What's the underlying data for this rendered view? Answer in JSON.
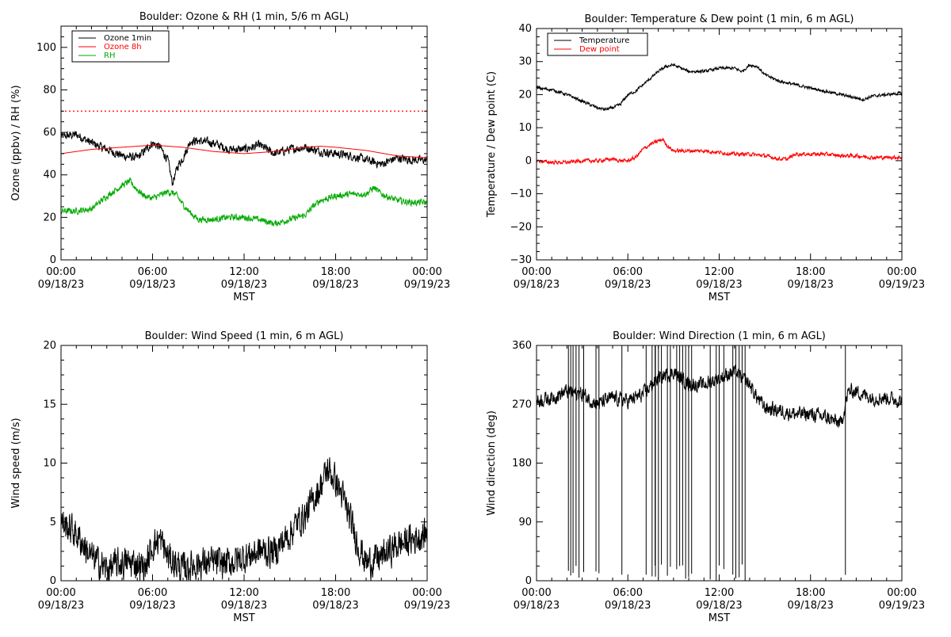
{
  "chart_data": [
    {
      "id": "ozone",
      "type": "line",
      "title": "Boulder: Ozone & RH (1 min, 5/6 m AGL)",
      "xlabel": "MST",
      "ylabel": "Ozone (ppbv) / RH (%)",
      "xlim": [
        0,
        24
      ],
      "ylim": [
        0,
        110
      ],
      "ytick_values": [
        0,
        20,
        40,
        60,
        80,
        100
      ],
      "ytick_labels": [
        "0",
        "20",
        "40",
        "60",
        "80",
        "100"
      ],
      "xtick_values": [
        0,
        6,
        12,
        18,
        24
      ],
      "xtick_labels": [
        [
          "00:00",
          "09/18/23"
        ],
        [
          "06:00",
          "09/18/23"
        ],
        [
          "12:00",
          "09/18/23"
        ],
        [
          "18:00",
          "09/18/23"
        ],
        [
          "00:00",
          "09/19/23"
        ]
      ],
      "show_xlabel": true,
      "legend": {
        "position": "top-left",
        "entries": [
          {
            "name": "Ozone 1min",
            "color": "#000000"
          },
          {
            "name": "Ozone 8h",
            "color": "#ff0000"
          },
          {
            "name": "RH",
            "color": "#00aa00"
          }
        ]
      },
      "reference_lines": [
        {
          "y": 70,
          "color": "#ff0000",
          "style": "dotted"
        }
      ],
      "series": [
        {
          "name": "Ozone 1min",
          "color": "#000000",
          "noise": 1.8,
          "x": [
            0,
            1,
            2,
            3,
            4,
            5,
            6,
            6.5,
            7,
            7.3,
            7.7,
            8,
            8.5,
            9,
            10,
            11,
            12,
            13,
            14,
            15,
            16,
            17,
            18,
            19,
            20,
            21,
            22,
            23,
            24
          ],
          "y": [
            58,
            59,
            55,
            52,
            49,
            48,
            55,
            53,
            47,
            36,
            45,
            48,
            56,
            56,
            55,
            52,
            52,
            54,
            50,
            52,
            53,
            51,
            50,
            49,
            47,
            45,
            48,
            47,
            47
          ]
        },
        {
          "name": "Ozone 8h",
          "color": "#ff0000",
          "noise": 0,
          "x": [
            0,
            2,
            4,
            6,
            8,
            10,
            12,
            14,
            16,
            17,
            18,
            20,
            22,
            24
          ],
          "y": [
            50,
            52,
            53,
            54,
            53,
            51,
            50,
            51,
            53,
            53.5,
            53,
            51.5,
            49,
            48
          ]
        },
        {
          "name": "RH",
          "color": "#00aa00",
          "noise": 1.3,
          "x": [
            0,
            1,
            2,
            3,
            4,
            4.5,
            5,
            5.5,
            6,
            7,
            7.5,
            8,
            8.5,
            9,
            10,
            11,
            12,
            13,
            14,
            15,
            16,
            16.5,
            17,
            18,
            19,
            20,
            20.5,
            21,
            22,
            23,
            24
          ],
          "y": [
            23,
            23,
            24,
            30,
            35,
            37,
            33,
            30,
            29,
            32,
            31,
            26,
            22,
            19,
            19,
            20,
            20,
            19,
            17,
            19,
            21,
            25,
            28,
            30,
            31,
            31,
            34,
            31,
            28,
            27,
            27
          ]
        }
      ]
    },
    {
      "id": "temp",
      "type": "line",
      "title": "Boulder: Temperature & Dew point (1 min, 6 m AGL)",
      "xlabel": "MST",
      "ylabel": "Temperature / Dew point (C)",
      "xlim": [
        0,
        24
      ],
      "ylim": [
        -30,
        40
      ],
      "ytick_values": [
        -30,
        -20,
        -10,
        0,
        10,
        20,
        30,
        40
      ],
      "ytick_labels": [
        "−30",
        "−20",
        "−10",
        "0",
        "10",
        "20",
        "30",
        "40"
      ],
      "xtick_values": [
        0,
        6,
        12,
        18,
        24
      ],
      "xtick_labels": [
        [
          "00:00",
          "09/18/23"
        ],
        [
          "06:00",
          "09/18/23"
        ],
        [
          "12:00",
          "09/18/23"
        ],
        [
          "18:00",
          "09/18/23"
        ],
        [
          "00:00",
          "09/19/23"
        ]
      ],
      "show_xlabel": true,
      "legend": {
        "position": "top-left",
        "entries": [
          {
            "name": "Temperature",
            "color": "#000000"
          },
          {
            "name": "Dew point",
            "color": "#ff0000"
          }
        ]
      },
      "reference_lines": [],
      "series": [
        {
          "name": "Temperature",
          "color": "#000000",
          "noise": 0.4,
          "x": [
            0,
            1,
            2,
            3,
            4,
            4.5,
            5,
            5.5,
            6,
            6.5,
            7,
            7.5,
            8,
            8.5,
            9,
            9.5,
            10,
            11,
            12,
            13,
            13.5,
            14,
            14.5,
            15,
            16,
            17,
            18,
            19,
            20,
            21,
            21.5,
            22,
            23,
            24
          ],
          "y": [
            22,
            21.5,
            20,
            18,
            16,
            15.5,
            16,
            17,
            20,
            21,
            23,
            25,
            27,
            28.5,
            29,
            28,
            27,
            27,
            28,
            28,
            27,
            29,
            28.5,
            26,
            24,
            23,
            22,
            21,
            20,
            19,
            18.5,
            19.5,
            20,
            20.5
          ]
        },
        {
          "name": "Dew point",
          "color": "#ff0000",
          "noise": 0.5,
          "x": [
            0,
            1,
            2,
            3,
            4,
            5,
            5.5,
            6,
            6.5,
            7,
            7.5,
            8,
            8.3,
            8.6,
            9,
            10,
            11,
            12,
            13,
            14,
            15,
            16,
            16.5,
            17,
            18,
            19,
            20,
            21,
            22,
            23,
            24
          ],
          "y": [
            0,
            -0.5,
            -0.5,
            0,
            0,
            0.5,
            0,
            0,
            1,
            3.5,
            5,
            6,
            6.5,
            4.5,
            3,
            3,
            3,
            2.5,
            2,
            2,
            1.5,
            0.5,
            0.5,
            2,
            2,
            2,
            1.5,
            1.5,
            1,
            1,
            1
          ]
        }
      ]
    },
    {
      "id": "wind",
      "type": "line",
      "title": "Boulder: Wind Speed (1 min, 6 m AGL)",
      "xlabel": "MST",
      "ylabel": "Wind speed (m/s)",
      "xlim": [
        0,
        24
      ],
      "ylim": [
        0,
        20
      ],
      "ytick_values": [
        0,
        5,
        10,
        15,
        20
      ],
      "ytick_labels": [
        "0",
        "5",
        "10",
        "15",
        "20"
      ],
      "xtick_values": [
        0,
        6,
        12,
        18,
        24
      ],
      "xtick_labels": [
        [
          "00:00",
          "09/18/23"
        ],
        [
          "06:00",
          "09/18/23"
        ],
        [
          "12:00",
          "09/18/23"
        ],
        [
          "18:00",
          "09/18/23"
        ],
        [
          "00:00",
          "09/19/23"
        ]
      ],
      "show_xlabel": true,
      "legend": null,
      "reference_lines": [],
      "series": [
        {
          "name": "Wind speed",
          "color": "#000000",
          "noise": 1.2,
          "x": [
            0,
            1,
            2,
            3,
            4,
            5,
            5.5,
            6,
            6.5,
            7,
            8,
            9,
            10,
            11,
            12,
            13,
            14,
            15,
            15.5,
            16,
            17,
            17.5,
            18,
            18.5,
            19,
            19.5,
            20,
            21,
            22,
            23,
            24
          ],
          "y": [
            5,
            4,
            2,
            1,
            1.5,
            1.5,
            1,
            3,
            3.5,
            2,
            1,
            1.5,
            1.5,
            1.5,
            2,
            2.5,
            2.5,
            4,
            5,
            5.5,
            8,
            9.5,
            8.5,
            7,
            5,
            3,
            1.5,
            2,
            3,
            3.5,
            4
          ]
        }
      ]
    },
    {
      "id": "wdir",
      "type": "line",
      "title": "Boulder: Wind Direction (1 min, 6 m AGL)",
      "xlabel": "MST",
      "ylabel": "Wind direction (deg)",
      "xlim": [
        0,
        24
      ],
      "ylim": [
        0,
        360
      ],
      "ytick_values": [
        0,
        90,
        180,
        270,
        360
      ],
      "ytick_labels": [
        "0",
        "90",
        "180",
        "270",
        "360"
      ],
      "xtick_values": [
        0,
        6,
        12,
        18,
        24
      ],
      "xtick_labels": [
        [
          "00:00",
          "09/18/23"
        ],
        [
          "06:00",
          "09/18/23"
        ],
        [
          "12:00",
          "09/18/23"
        ],
        [
          "18:00",
          "09/18/23"
        ],
        [
          "00:00",
          "09/19/23"
        ]
      ],
      "show_xlabel": true,
      "legend": null,
      "reference_lines": [],
      "series": [
        {
          "name": "Wind direction",
          "color": "#000000",
          "noise": 10,
          "x": [
            0,
            1,
            2,
            3,
            4,
            5,
            6,
            7,
            8,
            9,
            10,
            11,
            12,
            13,
            14,
            14.5,
            15,
            16,
            17,
            18,
            19,
            19.5,
            20,
            20.5,
            21,
            22,
            23,
            24
          ],
          "y": [
            275,
            280,
            290,
            285,
            270,
            280,
            275,
            285,
            310,
            320,
            300,
            300,
            310,
            320,
            300,
            280,
            265,
            260,
            255,
            255,
            250,
            245,
            240,
            290,
            290,
            280,
            280,
            275
          ],
          "spikes": [
            2.1,
            2.25,
            2.4,
            2.6,
            2.8,
            3.1,
            3.9,
            4.1,
            5.6,
            7.2,
            7.6,
            7.8,
            8.0,
            8.2,
            8.6,
            8.8,
            9.0,
            9.2,
            9.4,
            9.6,
            9.8,
            10.0,
            10.2,
            11.4,
            11.8,
            12.0,
            12.3,
            12.9,
            13.1,
            13.3,
            13.5,
            13.7,
            20.3
          ]
        }
      ]
    }
  ]
}
